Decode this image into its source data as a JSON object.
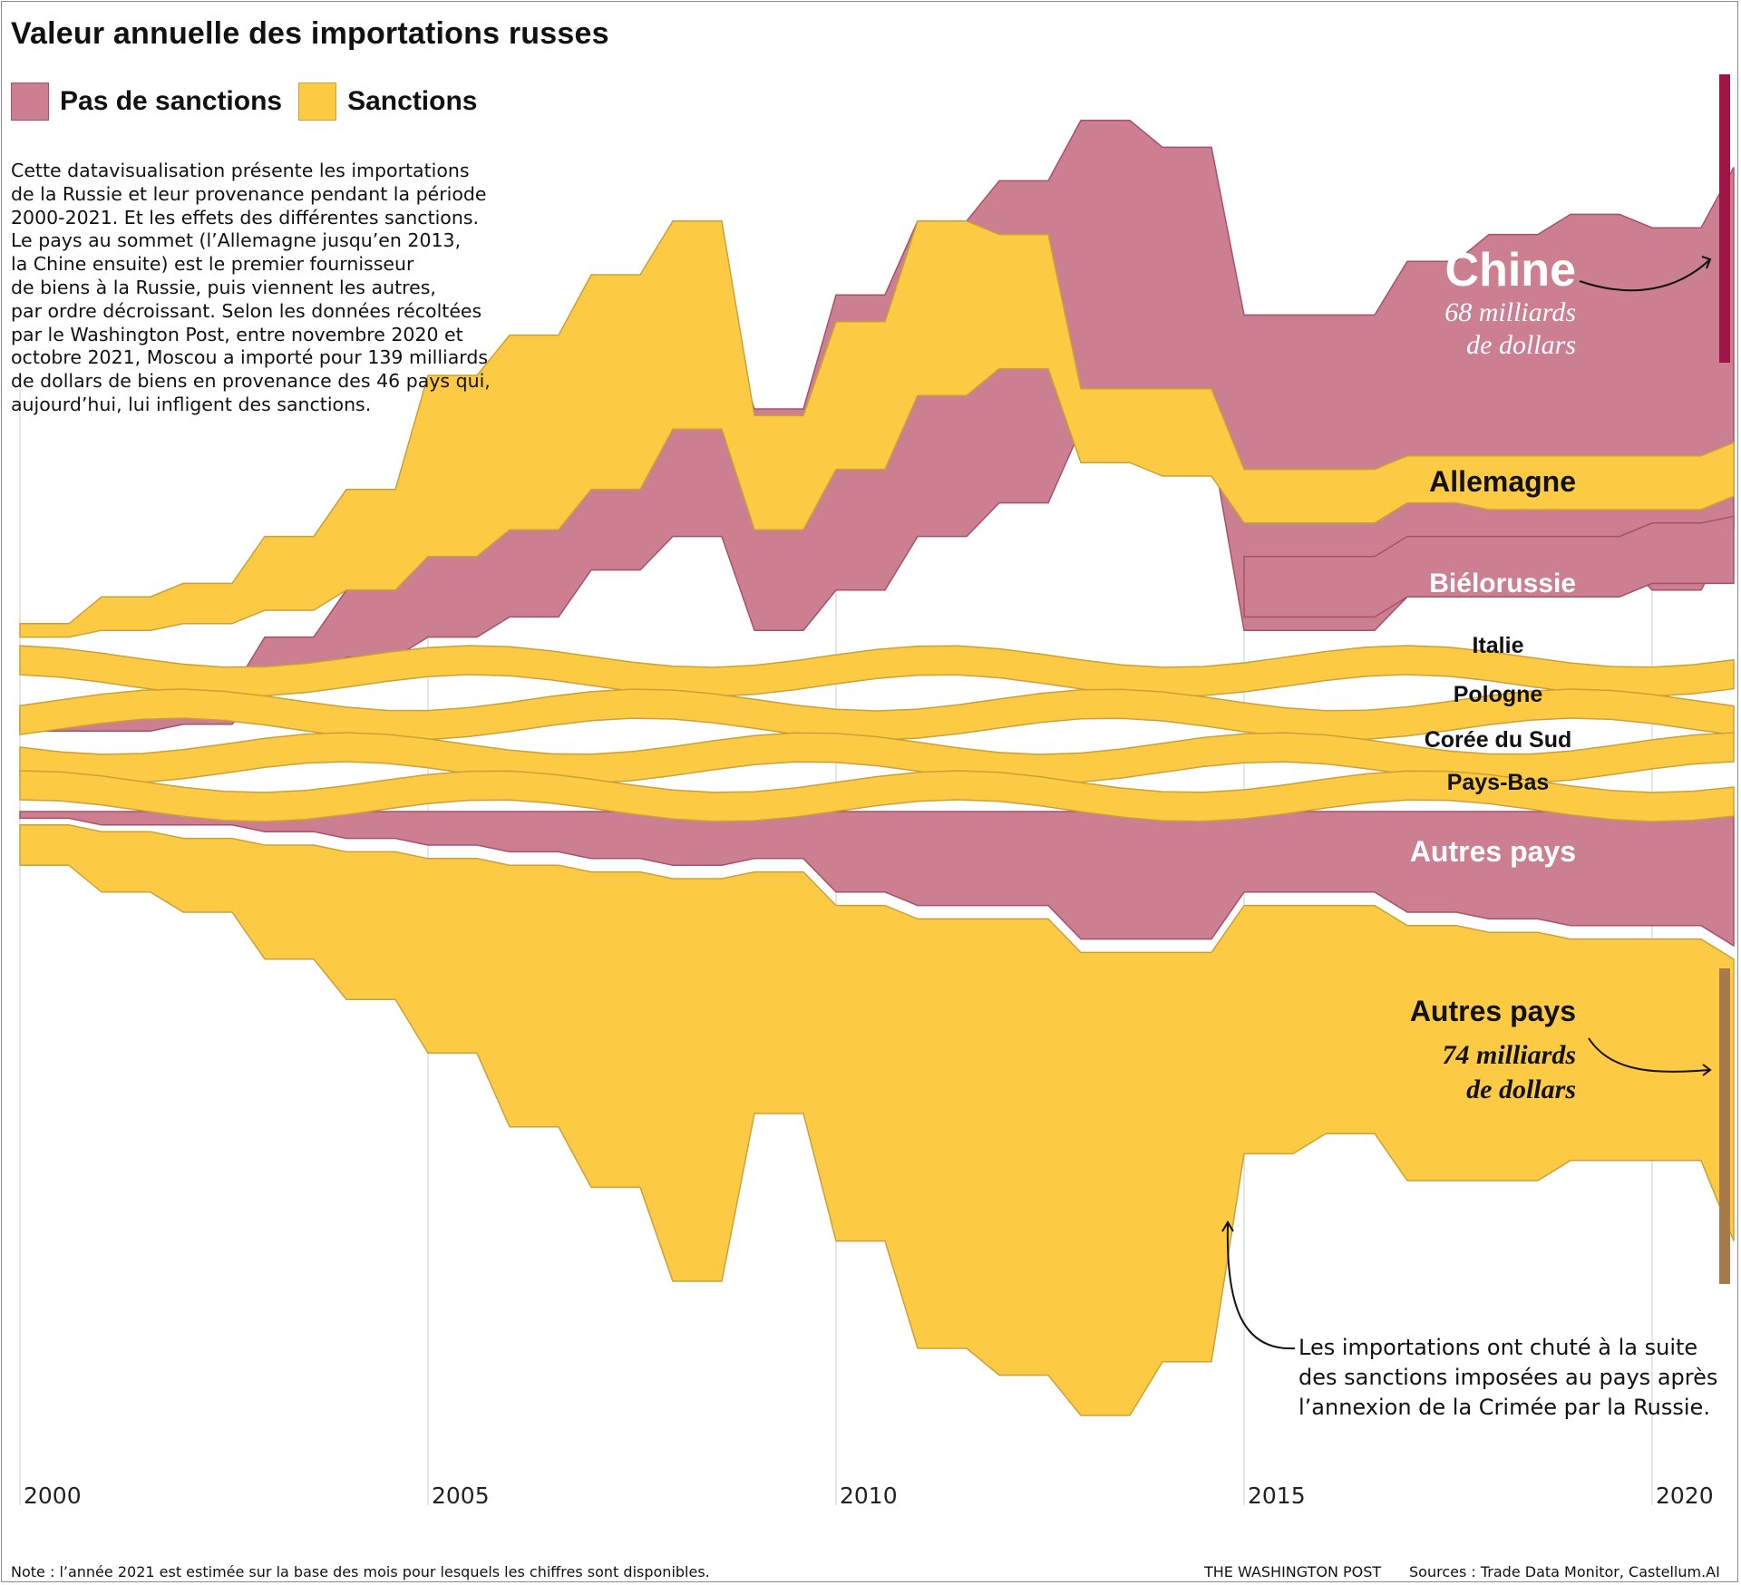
{
  "title": "Valeur annuelle des importations russes",
  "legend": {
    "no_sanctions": {
      "label": "Pas de sanctions",
      "color": "#cb7f91"
    },
    "sanctions": {
      "label": "Sanctions",
      "color": "#fcca43"
    }
  },
  "intro_text": "Cette datavisualisation présente les importations\nde la Russie et leur provenance pendant la période\n2000-2021. Et les effets des différentes sanctions.\nLe pays au sommet (l’Allemagne jusqu’en 2013,\nla Chine ensuite) est le premier fournisseur\nde biens à la Russie, puis viennent les autres,\npar ordre décroissant. Selon les données récoltées\npar le Washington Post, entre novembre 2020 et\noctobre 2021, Moscou a importé pour 139 milliards\nde dollars de biens en provenance des 46 pays qui,\naujourd’hui, lui infligent des sanctions.",
  "labels": {
    "chine": "Chine",
    "chine_value_1": "68 milliards",
    "chine_value_2": "de dollars",
    "allemagne": "Allemagne",
    "bielorussie": "Biélorussie",
    "italie": "Italie",
    "pologne": "Pologne",
    "coree": "Corée du Sud",
    "paysbas": "Pays-Bas",
    "autres_ns": "Autres pays",
    "autres_s": "Autres pays",
    "autres_s_value_1": "74 milliards",
    "autres_s_value_2": "de dollars"
  },
  "annotation": "Les importations ont chuté à la suite\ndes sanctions imposées au pays après\nl’annexion de la Crimée par la Russie.",
  "footer": {
    "note": "Note : l’année 2021 est estimée sur la base des mois pour lesquels les chiffres sont disponibles.",
    "brand": "THE WASHINGTON POST",
    "sources": "Sources : Trade Data Monitor, Castellum.AI"
  },
  "chart_data": {
    "type": "area",
    "x_ticks": [
      "2000",
      "2005",
      "2010",
      "2015",
      "2020"
    ],
    "x_range": [
      2000,
      2021
    ],
    "x": [
      2000,
      2000.6,
      2001,
      2001.6,
      2002,
      2002.6,
      2003,
      2003.6,
      2004,
      2004.6,
      2005,
      2005.6,
      2006,
      2006.6,
      2007,
      2007.6,
      2008,
      2008.6,
      2009,
      2009.6,
      2010,
      2010.6,
      2011,
      2011.6,
      2012,
      2012.6,
      2013,
      2013.6,
      2014,
      2014.6,
      2015,
      2015.6,
      2016,
      2016.6,
      2017,
      2017.6,
      2018,
      2018.6,
      2019,
      2019.6,
      2020,
      2020.6,
      2021
    ],
    "series": [
      {
        "name": "Chine",
        "group": "Pas de sanctions",
        "top": [
          1.5,
          1.5,
          1.7,
          1.7,
          1.8,
          1.8,
          2.6,
          2.6,
          3.3,
          3.3,
          4.1,
          4.1,
          5.0,
          5.0,
          6.4,
          6.4,
          7.5,
          7.5,
          6.0,
          6.0,
          7.7,
          7.7,
          8.8,
          8.8,
          9.4,
          9.4,
          10.3,
          10.3,
          9.9,
          9.9,
          7.4,
          7.4,
          7.4,
          7.4,
          8.2,
          8.2,
          8.6,
          8.6,
          8.9,
          8.9,
          8.7,
          8.7,
          9.6
        ],
        "bottom": [
          1.2,
          1.2,
          1.2,
          1.2,
          1.3,
          1.3,
          1.9,
          1.9,
          2.3,
          2.3,
          2.6,
          2.6,
          2.9,
          2.9,
          3.6,
          3.6,
          4.1,
          4.1,
          2.7,
          2.7,
          3.3,
          3.3,
          4.1,
          4.1,
          4.6,
          4.6,
          5.7,
          5.7,
          5.5,
          5.5,
          2.7,
          2.7,
          2.7,
          2.7,
          3.2,
          3.2,
          3.6,
          3.6,
          3.8,
          3.8,
          3.3,
          3.3,
          4.2
        ]
      },
      {
        "name": "Allemagne",
        "group": "Sanctions",
        "top": [
          2.8,
          2.8,
          3.2,
          3.2,
          3.4,
          3.4,
          4.1,
          4.1,
          4.8,
          4.8,
          6.5,
          6.5,
          7.1,
          7.1,
          8.0,
          8.0,
          8.8,
          8.8,
          5.9,
          5.9,
          7.3,
          7.3,
          8.8,
          8.8,
          8.6,
          8.6,
          6.3,
          6.3,
          6.3,
          6.3,
          5.1,
          5.1,
          5.1,
          5.1,
          5.3,
          5.3,
          5.3,
          5.3,
          5.3,
          5.3,
          5.3,
          5.3,
          5.5
        ],
        "bottom": [
          2.6,
          2.6,
          2.7,
          2.7,
          2.8,
          2.8,
          3.0,
          3.0,
          3.3,
          3.3,
          3.8,
          3.8,
          4.2,
          4.2,
          4.8,
          4.8,
          5.7,
          5.7,
          4.2,
          4.2,
          5.1,
          5.1,
          6.2,
          6.2,
          6.6,
          6.6,
          5.2,
          5.2,
          5.0,
          5.0,
          4.3,
          4.3,
          4.3,
          4.3,
          4.6,
          4.6,
          4.5,
          4.5,
          4.5,
          4.5,
          4.5,
          4.5,
          4.7
        ]
      },
      {
        "name": "Biélorussie",
        "group": "Pas de sanctions",
        "top": [
          null,
          null,
          null,
          null,
          null,
          null,
          null,
          null,
          null,
          null,
          null,
          null,
          null,
          null,
          null,
          null,
          null,
          null,
          null,
          null,
          null,
          null,
          null,
          null,
          null,
          null,
          null,
          null,
          null,
          null,
          3.8,
          3.8,
          3.8,
          3.8,
          4.1,
          4.1,
          4.1,
          4.1,
          4.1,
          4.1,
          4.3,
          4.3,
          4.4
        ],
        "bottom": [
          null,
          null,
          null,
          null,
          null,
          null,
          null,
          null,
          null,
          null,
          null,
          null,
          null,
          null,
          null,
          null,
          null,
          null,
          null,
          null,
          null,
          null,
          null,
          null,
          null,
          null,
          null,
          null,
          null,
          null,
          2.9,
          2.9,
          2.9,
          2.9,
          3.2,
          3.2,
          3.2,
          3.2,
          3.2,
          3.2,
          3.4,
          3.4,
          3.4
        ]
      },
      {
        "name": "Italie",
        "group": "Sanctions",
        "top": [],
        "bottom": []
      },
      {
        "name": "Pologne",
        "group": "Sanctions",
        "top": [],
        "bottom": []
      },
      {
        "name": "Corée du Sud",
        "group": "Sanctions",
        "top": [],
        "bottom": []
      },
      {
        "name": "Pays-Bas",
        "group": "Sanctions",
        "top": [],
        "bottom": []
      },
      {
        "name": "Autres pays",
        "group": "Pas de sanctions",
        "top": [
          0,
          0,
          0,
          0,
          0,
          0,
          0,
          0,
          0,
          0,
          0,
          0,
          0,
          0,
          0,
          0,
          0,
          0,
          0,
          0,
          0,
          0,
          0,
          0,
          0,
          0,
          0,
          0,
          0,
          0,
          0,
          0,
          0,
          0,
          0,
          0,
          0,
          0,
          0,
          0,
          0,
          0,
          0
        ],
        "bottom": [
          -0.1,
          -0.1,
          -0.2,
          -0.2,
          -0.2,
          -0.2,
          -0.3,
          -0.3,
          -0.4,
          -0.4,
          -0.5,
          -0.5,
          -0.6,
          -0.6,
          -0.7,
          -0.7,
          -0.8,
          -0.8,
          -0.7,
          -0.7,
          -1.2,
          -1.2,
          -1.4,
          -1.4,
          -1.4,
          -1.4,
          -1.9,
          -1.9,
          -1.9,
          -1.9,
          -1.2,
          -1.2,
          -1.2,
          -1.2,
          -1.5,
          -1.5,
          -1.6,
          -1.6,
          -1.7,
          -1.7,
          -1.7,
          -1.7,
          -2.0
        ]
      },
      {
        "name": "Autres pays",
        "group": "Sanctions",
        "top": [
          -0.2,
          -0.2,
          -0.3,
          -0.3,
          -0.4,
          -0.4,
          -0.5,
          -0.5,
          -0.6,
          -0.6,
          -0.7,
          -0.7,
          -0.8,
          -0.8,
          -0.9,
          -0.9,
          -1.0,
          -1.0,
          -0.9,
          -0.9,
          -1.4,
          -1.4,
          -1.6,
          -1.6,
          -1.6,
          -1.6,
          -2.1,
          -2.1,
          -2.1,
          -2.1,
          -1.4,
          -1.4,
          -1.4,
          -1.4,
          -1.7,
          -1.7,
          -1.8,
          -1.8,
          -1.9,
          -1.9,
          -1.9,
          -1.9,
          -2.2
        ],
        "bottom": [
          -0.8,
          -0.8,
          -1.2,
          -1.2,
          -1.5,
          -1.5,
          -2.2,
          -2.2,
          -2.8,
          -2.8,
          -3.6,
          -3.6,
          -4.7,
          -4.7,
          -5.6,
          -5.6,
          -7.0,
          -7.0,
          -4.5,
          -4.5,
          -6.4,
          -6.4,
          -8.0,
          -8.0,
          -8.4,
          -8.4,
          -9.0,
          -9.0,
          -8.2,
          -8.2,
          -5.1,
          -5.1,
          -4.8,
          -4.8,
          -5.5,
          -5.5,
          -5.5,
          -5.5,
          -5.2,
          -5.2,
          -5.2,
          -5.2,
          -6.4
        ]
      }
    ],
    "annotations": [
      {
        "label": "Chine",
        "value": "68 milliards de dollars"
      },
      {
        "label": "Autres pays",
        "value": "74 milliards de dollars"
      }
    ]
  }
}
